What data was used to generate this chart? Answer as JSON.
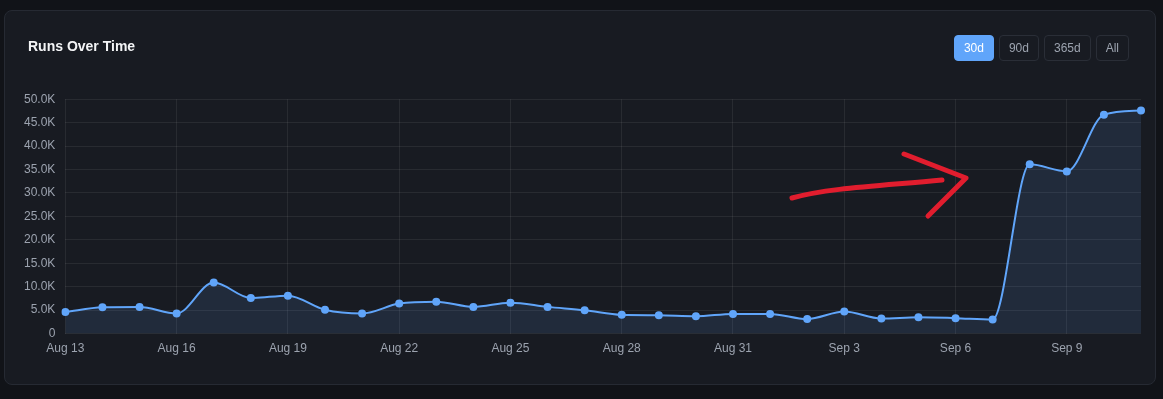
{
  "chart_data": {
    "type": "area",
    "title": "Runs Over Time",
    "annotations": [
      "30d",
      "90d",
      "365d",
      "All"
    ],
    "categories": [
      "Aug 13",
      null,
      null,
      "Aug 16",
      null,
      null,
      "Aug 19",
      null,
      null,
      "Aug 22",
      null,
      null,
      "Aug 25",
      null,
      null,
      "Aug 28",
      null,
      null,
      "Aug 31",
      null,
      null,
      "Sep 3",
      null,
      null,
      "Sep 6",
      null,
      null,
      "Sep 9",
      null,
      null
    ],
    "series": [
      {
        "color": "#60a5fa",
        "values": [
          4600,
          5600,
          5700,
          4300,
          10900,
          7600,
          8100,
          5100,
          4300,
          6400,
          6800,
          5700,
          6600,
          5700,
          5000,
          4000,
          3900,
          3700,
          4200,
          4200,
          3100,
          4700,
          3200,
          3500,
          3300,
          3000,
          36100,
          34600,
          46700,
          47600
        ]
      }
    ],
    "ylim": [
      0,
      50000
    ],
    "yticks": [
      0,
      {
        "value": 5000,
        "label": "5.0K"
      },
      {
        "value": 10000,
        "label": "10.0K"
      },
      {
        "value": 15000,
        "label": "15.0K"
      },
      {
        "value": 20000,
        "label": "20.0K"
      },
      {
        "value": 25000,
        "label": "25.0K"
      },
      {
        "value": 30000,
        "label": "30.0K"
      },
      {
        "value": 35000,
        "label": "35.0K"
      },
      {
        "value": 40000,
        "label": "40.0K"
      },
      {
        "value": 45000,
        "label": "45.0K"
      },
      {
        "value": 50000,
        "label": "50.0K"
      }
    ],
    "grid": true,
    "marker": "circle",
    "legend": false
  }
}
